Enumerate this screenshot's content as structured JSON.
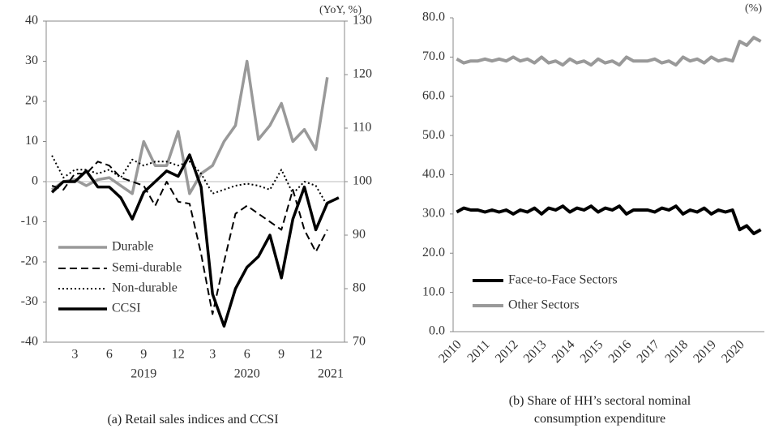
{
  "chart_data": [
    {
      "type": "line",
      "caption": "(a) Retail sales indices and CCSI",
      "unit_label": "(YoY, %)",
      "categories": [
        null,
        null,
        "3",
        null,
        null,
        "6",
        null,
        null,
        "9",
        null,
        null,
        "12",
        null,
        null,
        "3",
        null,
        null,
        "6",
        null,
        null,
        "9",
        null,
        null,
        "12",
        null,
        null
      ],
      "group_labels": [
        "2019",
        "2020",
        "2021"
      ],
      "ylim": [
        -40,
        40
      ],
      "yticks": [
        -40,
        -30,
        -20,
        -10,
        0,
        10,
        20,
        30,
        40
      ],
      "y2lim": [
        70,
        130
      ],
      "y2ticks": [
        70,
        80,
        90,
        100,
        110,
        120,
        130
      ],
      "legend": "lower left",
      "series": [
        {
          "name": "Durable",
          "color": "#999999",
          "dash": "solid",
          "values": [
            -2,
            0,
            0.5,
            -1,
            0.5,
            1,
            -1,
            -3,
            10,
            4,
            4,
            12.5,
            -3,
            2,
            4,
            10,
            14,
            30,
            10.5,
            14,
            19.5,
            10,
            13,
            8,
            26,
            null
          ]
        },
        {
          "name": "Semi-durable",
          "color": "#000000",
          "dash": "dashed",
          "values": [
            -1,
            -2,
            2,
            2,
            5,
            4,
            1,
            0,
            -1,
            -6,
            0,
            -5,
            -5.5,
            -18,
            -33,
            -20,
            -8,
            -6,
            -8,
            -10,
            -12,
            -2,
            -12,
            -17.5,
            -12,
            null
          ]
        },
        {
          "name": "Non-durable",
          "color": "#000000",
          "dash": "dotted",
          "values": [
            6.5,
            1,
            3,
            3,
            2,
            3,
            1,
            5.5,
            4,
            5,
            5,
            4,
            5,
            2,
            -3,
            -2,
            -1,
            -0.5,
            -1,
            -2,
            3,
            -3,
            0,
            -1,
            -6,
            null
          ]
        },
        {
          "name": "CCSI",
          "color": "#000000",
          "dash": "solid",
          "axis": "y2",
          "values": [
            98,
            100,
            100,
            102,
            99,
            99,
            97,
            93,
            98,
            100,
            102,
            101,
            105,
            99,
            79,
            73,
            80,
            84,
            86,
            90,
            82,
            93,
            99,
            91,
            96,
            97
          ]
        }
      ]
    },
    {
      "type": "line",
      "caption": "(b) Share of HH’s sectoral nominal consumption expenditure",
      "unit_label": "(%)",
      "categories": [
        "2010",
        null,
        null,
        null,
        "2011",
        null,
        null,
        null,
        "2012",
        null,
        null,
        null,
        "2013",
        null,
        null,
        null,
        "2014",
        null,
        null,
        null,
        "2015",
        null,
        null,
        null,
        "2016",
        null,
        null,
        null,
        "2017",
        null,
        null,
        null,
        "2018",
        null,
        null,
        null,
        "2019",
        null,
        null,
        null,
        "2020",
        null,
        null,
        null
      ],
      "ylim": [
        0,
        80
      ],
      "yticks": [
        {
          "value": 0,
          "label": "0.0"
        },
        {
          "value": 10,
          "label": "10.0"
        },
        {
          "value": 20,
          "label": "20.0"
        },
        {
          "value": 30,
          "label": "30.0"
        },
        {
          "value": 40,
          "label": "40.0"
        },
        {
          "value": 50,
          "label": "50.0"
        },
        {
          "value": 60,
          "label": "60.0"
        },
        {
          "value": 70,
          "label": "70.0"
        },
        {
          "value": 80,
          "label": "80.0"
        }
      ],
      "legend": "lower left",
      "series": [
        {
          "name": "Face-to-Face Sectors",
          "color": "#000000",
          "dash": "solid",
          "values": [
            30.5,
            31.5,
            31,
            31,
            30.5,
            31,
            30.5,
            31,
            30,
            31,
            30.5,
            31.5,
            30,
            31.5,
            31,
            32,
            30.5,
            31.5,
            31,
            32,
            30.5,
            31.5,
            31,
            32,
            30,
            31,
            31,
            31,
            30.5,
            31.5,
            31,
            32,
            30,
            31,
            30.5,
            31.5,
            30,
            31,
            30.5,
            31,
            26,
            27,
            25,
            26
          ]
        },
        {
          "name": "Other Sectors",
          "color": "#999999",
          "dash": "solid",
          "values": [
            69.5,
            68.5,
            69,
            69,
            69.5,
            69,
            69.5,
            69,
            70,
            69,
            69.5,
            68.5,
            70,
            68.5,
            69,
            68,
            69.5,
            68.5,
            69,
            68,
            69.5,
            68.5,
            69,
            68,
            70,
            69,
            69,
            69,
            69.5,
            68.5,
            69,
            68,
            70,
            69,
            69.5,
            68.5,
            70,
            69,
            69.5,
            69,
            74,
            73,
            75,
            74
          ]
        }
      ]
    }
  ]
}
